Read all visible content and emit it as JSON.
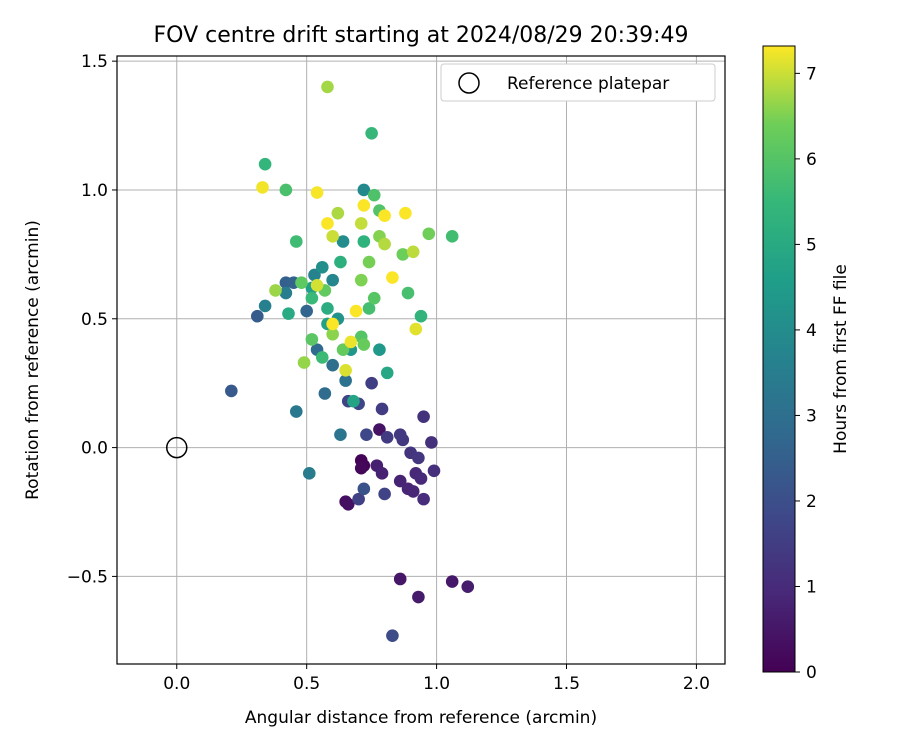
{
  "chart_data": {
    "type": "scatter",
    "title": "FOV centre drift starting at 2024/08/29 20:39:49",
    "xlabel": "Angular distance from reference (arcmin)",
    "ylabel": "Rotation from reference (arcmin)",
    "xlim": [
      -0.23,
      2.11
    ],
    "ylim": [
      -0.84,
      1.52
    ],
    "xticks": [
      0.0,
      0.5,
      1.0,
      1.5,
      2.0
    ],
    "xtick_labels": [
      "0.0",
      "0.5",
      "1.0",
      "1.5",
      "2.0"
    ],
    "yticks": [
      -0.5,
      0.0,
      0.5,
      1.0,
      1.5
    ],
    "ytick_labels": [
      "−0.5",
      "0.0",
      "0.5",
      "1.0",
      "1.5"
    ],
    "grid": true,
    "legend": {
      "position": "top-right",
      "entries": [
        "Reference platepar"
      ]
    },
    "reference_point": {
      "x": 0.0,
      "y": 0.0,
      "label": "Reference platepar"
    },
    "colorbar": {
      "label": "Hours from first FF file",
      "min": 0.0,
      "max": 7.32,
      "ticks": [
        0,
        1,
        2,
        3,
        4,
        5,
        6,
        7
      ],
      "tick_labels": [
        "0",
        "1",
        "2",
        "3",
        "4",
        "5",
        "6",
        "7"
      ],
      "colormap": "viridis"
    },
    "points": [
      {
        "x": 0.71,
        "y": -0.05,
        "h": 0.05
      },
      {
        "x": 0.72,
        "y": -0.07,
        "h": 0.1
      },
      {
        "x": 0.71,
        "y": -0.08,
        "h": 0.15
      },
      {
        "x": 0.65,
        "y": -0.21,
        "h": 0.3
      },
      {
        "x": 0.66,
        "y": -0.22,
        "h": 0.35
      },
      {
        "x": 0.78,
        "y": 0.07,
        "h": 0.4
      },
      {
        "x": 0.86,
        "y": -0.51,
        "h": 0.5
      },
      {
        "x": 1.06,
        "y": -0.52,
        "h": 0.55
      },
      {
        "x": 0.93,
        "y": -0.58,
        "h": 0.6
      },
      {
        "x": 1.12,
        "y": -0.54,
        "h": 0.65
      },
      {
        "x": 0.77,
        "y": -0.07,
        "h": 0.7
      },
      {
        "x": 0.79,
        "y": -0.1,
        "h": 0.75
      },
      {
        "x": 0.86,
        "y": -0.13,
        "h": 0.8
      },
      {
        "x": 0.89,
        "y": -0.16,
        "h": 0.85
      },
      {
        "x": 0.91,
        "y": -0.17,
        "h": 0.9
      },
      {
        "x": 0.92,
        "y": -0.1,
        "h": 0.95
      },
      {
        "x": 0.94,
        "y": -0.12,
        "h": 1.0
      },
      {
        "x": 0.95,
        "y": -0.2,
        "h": 1.05
      },
      {
        "x": 0.99,
        "y": -0.09,
        "h": 1.1
      },
      {
        "x": 0.98,
        "y": 0.02,
        "h": 1.15
      },
      {
        "x": 0.95,
        "y": 0.12,
        "h": 1.2
      },
      {
        "x": 0.9,
        "y": -0.02,
        "h": 1.25
      },
      {
        "x": 0.93,
        "y": -0.04,
        "h": 1.3
      },
      {
        "x": 0.87,
        "y": 0.03,
        "h": 1.35
      },
      {
        "x": 0.86,
        "y": 0.05,
        "h": 1.4
      },
      {
        "x": 0.81,
        "y": 0.04,
        "h": 1.45
      },
      {
        "x": 0.79,
        "y": 0.15,
        "h": 1.5
      },
      {
        "x": 0.75,
        "y": 0.25,
        "h": 1.55
      },
      {
        "x": 0.7,
        "y": -0.2,
        "h": 1.6
      },
      {
        "x": 0.8,
        "y": -0.18,
        "h": 1.65
      },
      {
        "x": 0.66,
        "y": 0.18,
        "h": 1.7
      },
      {
        "x": 0.7,
        "y": 0.17,
        "h": 1.75
      },
      {
        "x": 0.73,
        "y": 0.05,
        "h": 1.8
      },
      {
        "x": 0.83,
        "y": -0.73,
        "h": 1.9
      },
      {
        "x": 0.72,
        "y": -0.16,
        "h": 2.1
      },
      {
        "x": 0.21,
        "y": 0.22,
        "h": 2.3
      },
      {
        "x": 0.31,
        "y": 0.51,
        "h": 2.4
      },
      {
        "x": 0.42,
        "y": 0.64,
        "h": 2.5
      },
      {
        "x": 0.45,
        "y": 0.64,
        "h": 2.6
      },
      {
        "x": 0.5,
        "y": 0.53,
        "h": 2.7
      },
      {
        "x": 0.54,
        "y": 0.38,
        "h": 2.8
      },
      {
        "x": 0.57,
        "y": 0.21,
        "h": 2.9
      },
      {
        "x": 0.6,
        "y": 0.32,
        "h": 3.0
      },
      {
        "x": 0.65,
        "y": 0.26,
        "h": 3.1
      },
      {
        "x": 0.63,
        "y": 0.05,
        "h": 3.2
      },
      {
        "x": 0.46,
        "y": 0.14,
        "h": 3.3
      },
      {
        "x": 0.51,
        "y": -0.1,
        "h": 3.4
      },
      {
        "x": 0.42,
        "y": 0.6,
        "h": 3.5
      },
      {
        "x": 0.34,
        "y": 0.55,
        "h": 3.6
      },
      {
        "x": 0.53,
        "y": 0.67,
        "h": 3.7
      },
      {
        "x": 0.6,
        "y": 0.65,
        "h": 3.8
      },
      {
        "x": 0.72,
        "y": 1.0,
        "h": 3.9
      },
      {
        "x": 0.64,
        "y": 0.8,
        "h": 4.0
      },
      {
        "x": 0.56,
        "y": 0.7,
        "h": 4.1
      },
      {
        "x": 0.62,
        "y": 0.5,
        "h": 4.2
      },
      {
        "x": 0.67,
        "y": 0.38,
        "h": 4.3
      },
      {
        "x": 0.78,
        "y": 0.38,
        "h": 4.4
      },
      {
        "x": 0.52,
        "y": 0.62,
        "h": 4.6
      },
      {
        "x": 0.58,
        "y": 0.48,
        "h": 4.7
      },
      {
        "x": 0.68,
        "y": 0.18,
        "h": 4.8
      },
      {
        "x": 0.81,
        "y": 0.29,
        "h": 4.9
      },
      {
        "x": 0.43,
        "y": 0.52,
        "h": 5.0
      },
      {
        "x": 0.58,
        "y": 0.54,
        "h": 5.1
      },
      {
        "x": 0.63,
        "y": 0.72,
        "h": 5.2
      },
      {
        "x": 0.72,
        "y": 0.8,
        "h": 5.3
      },
      {
        "x": 0.94,
        "y": 0.51,
        "h": 5.35
      },
      {
        "x": 0.34,
        "y": 1.1,
        "h": 5.4
      },
      {
        "x": 0.75,
        "y": 1.22,
        "h": 5.5
      },
      {
        "x": 0.52,
        "y": 0.58,
        "h": 5.55
      },
      {
        "x": 0.56,
        "y": 0.35,
        "h": 5.6
      },
      {
        "x": 0.46,
        "y": 0.8,
        "h": 5.65
      },
      {
        "x": 1.06,
        "y": 0.82,
        "h": 5.7
      },
      {
        "x": 0.74,
        "y": 0.54,
        "h": 5.75
      },
      {
        "x": 0.89,
        "y": 0.6,
        "h": 5.8
      },
      {
        "x": 0.42,
        "y": 1.0,
        "h": 5.85
      },
      {
        "x": 0.76,
        "y": 0.98,
        "h": 5.9
      },
      {
        "x": 0.78,
        "y": 0.92,
        "h": 5.95
      },
      {
        "x": 0.71,
        "y": 0.43,
        "h": 6.0
      },
      {
        "x": 0.76,
        "y": 0.58,
        "h": 6.05
      },
      {
        "x": 0.52,
        "y": 0.42,
        "h": 6.1
      },
      {
        "x": 0.48,
        "y": 0.64,
        "h": 6.15
      },
      {
        "x": 0.57,
        "y": 0.61,
        "h": 6.2
      },
      {
        "x": 0.64,
        "y": 0.38,
        "h": 6.25
      },
      {
        "x": 0.72,
        "y": 0.4,
        "h": 6.3
      },
      {
        "x": 0.87,
        "y": 0.75,
        "h": 6.35
      },
      {
        "x": 0.97,
        "y": 0.83,
        "h": 6.4
      },
      {
        "x": 0.74,
        "y": 0.72,
        "h": 6.45
      },
      {
        "x": 0.71,
        "y": 0.65,
        "h": 6.5
      },
      {
        "x": 0.78,
        "y": 0.82,
        "h": 6.55
      },
      {
        "x": 0.6,
        "y": 0.44,
        "h": 6.6
      },
      {
        "x": 0.49,
        "y": 0.33,
        "h": 6.65
      },
      {
        "x": 0.38,
        "y": 0.61,
        "h": 6.7
      },
      {
        "x": 0.58,
        "y": 1.4,
        "h": 6.75
      },
      {
        "x": 0.62,
        "y": 0.91,
        "h": 6.8
      },
      {
        "x": 0.8,
        "y": 0.79,
        "h": 6.85
      },
      {
        "x": 0.91,
        "y": 0.76,
        "h": 6.9
      },
      {
        "x": 0.71,
        "y": 0.87,
        "h": 6.95
      },
      {
        "x": 0.6,
        "y": 0.82,
        "h": 7.0
      },
      {
        "x": 0.54,
        "y": 0.63,
        "h": 7.05
      },
      {
        "x": 0.65,
        "y": 0.3,
        "h": 7.1
      },
      {
        "x": 0.92,
        "y": 0.46,
        "h": 7.15
      },
      {
        "x": 0.67,
        "y": 0.41,
        "h": 7.2
      },
      {
        "x": 0.33,
        "y": 1.01,
        "h": 7.25
      },
      {
        "x": 0.54,
        "y": 0.99,
        "h": 7.28
      },
      {
        "x": 0.58,
        "y": 0.87,
        "h": 7.3
      },
      {
        "x": 0.8,
        "y": 0.9,
        "h": 7.3
      },
      {
        "x": 0.88,
        "y": 0.91,
        "h": 7.3
      },
      {
        "x": 0.72,
        "y": 0.94,
        "h": 7.3
      },
      {
        "x": 0.6,
        "y": 0.48,
        "h": 7.3
      },
      {
        "x": 0.69,
        "y": 0.53,
        "h": 7.3
      },
      {
        "x": 0.83,
        "y": 0.66,
        "h": 7.3
      }
    ]
  }
}
